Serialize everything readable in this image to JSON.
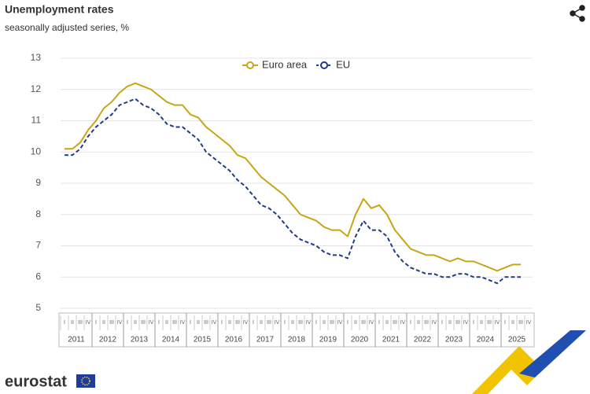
{
  "chart_data": {
    "type": "line",
    "title": "Unemployment rates",
    "subtitle": "seasonally adjusted series, %",
    "logo_text": "eurostat",
    "categories": [
      "I",
      "II",
      "III",
      "IV",
      "I",
      "II",
      "III",
      "IV",
      "I",
      "II",
      "III",
      "IV",
      "I",
      "II",
      "III",
      "IV",
      "I",
      "II",
      "III",
      "IV",
      "I",
      "II",
      "III",
      "IV",
      "I",
      "II",
      "III",
      "IV",
      "I",
      "II",
      "III",
      "IV",
      "I",
      "II",
      "III",
      "IV",
      "I",
      "II",
      "III",
      "IV",
      "I",
      "II",
      "III",
      "IV",
      "I",
      "II",
      "III",
      "IV",
      "I",
      "II",
      "III",
      "IV",
      "I",
      "II",
      "III",
      "IV",
      "I",
      "II",
      "III",
      "IV"
    ],
    "years": [
      "2011",
      "2012",
      "2013",
      "2014",
      "2015",
      "2016",
      "2017",
      "2018",
      "2019",
      "2020",
      "2021",
      "2022",
      "2023",
      "2024",
      "2025"
    ],
    "series": [
      {
        "name": "Euro area",
        "color": "#c9a516",
        "dashed": false,
        "values": [
          10.1,
          10.1,
          10.3,
          10.7,
          11.0,
          11.4,
          11.6,
          11.9,
          12.1,
          12.2,
          12.1,
          12.0,
          11.8,
          11.6,
          11.5,
          11.5,
          11.2,
          11.1,
          10.8,
          10.6,
          10.4,
          10.2,
          9.9,
          9.8,
          9.5,
          9.2,
          9.0,
          8.8,
          8.6,
          8.3,
          8.0,
          7.9,
          7.8,
          7.6,
          7.5,
          7.5,
          7.3,
          8.0,
          8.5,
          8.2,
          8.3,
          8.0,
          7.5,
          7.2,
          6.9,
          6.8,
          6.7,
          6.7,
          6.6,
          6.5,
          6.6,
          6.5,
          6.5,
          6.4,
          6.3,
          6.2,
          6.3,
          6.4,
          6.4,
          null
        ]
      },
      {
        "name": "EU",
        "color": "#1f3c88",
        "dashed": true,
        "values": [
          9.9,
          9.9,
          10.1,
          10.5,
          10.8,
          11.0,
          11.2,
          11.5,
          11.6,
          11.7,
          11.5,
          11.4,
          11.2,
          10.9,
          10.8,
          10.8,
          10.6,
          10.4,
          10.0,
          9.8,
          9.6,
          9.4,
          9.1,
          8.9,
          8.6,
          8.3,
          8.2,
          8.0,
          7.7,
          7.4,
          7.2,
          7.1,
          7.0,
          6.8,
          6.7,
          6.7,
          6.6,
          7.3,
          7.8,
          7.5,
          7.5,
          7.3,
          6.8,
          6.5,
          6.3,
          6.2,
          6.1,
          6.1,
          6.0,
          6.0,
          6.1,
          6.1,
          6.0,
          6.0,
          5.9,
          5.8,
          6.0,
          6.0,
          6.0,
          null
        ]
      }
    ],
    "ylim": [
      5,
      13
    ],
    "yticks": [
      5,
      6,
      7,
      8,
      9,
      10,
      11,
      12,
      13
    ],
    "grid": true,
    "legend": "top"
  }
}
